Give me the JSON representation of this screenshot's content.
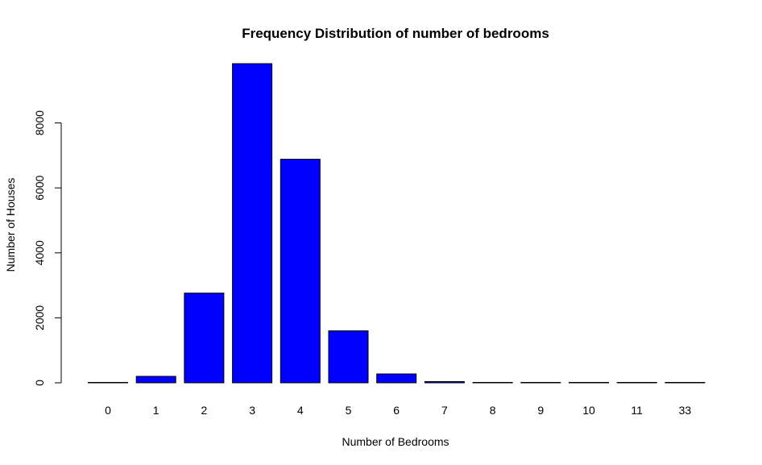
{
  "chart_data": {
    "type": "bar",
    "title": "Frequency Distribution of number of bedrooms",
    "xlabel": "Number of Bedrooms",
    "ylabel": "Number of Houses",
    "categories": [
      "0",
      "1",
      "2",
      "3",
      "4",
      "5",
      "6",
      "7",
      "8",
      "9",
      "10",
      "11",
      "33"
    ],
    "values": [
      13,
      199,
      2760,
      9824,
      6882,
      1601,
      272,
      38,
      13,
      6,
      3,
      1,
      1
    ],
    "ylim": [
      0,
      9824
    ],
    "yticks": [
      "0",
      "2000",
      "4000",
      "6000",
      "8000"
    ],
    "bar_color": "#0000ff",
    "bar_border_color": "#000000",
    "grid": false,
    "legend": "none"
  }
}
